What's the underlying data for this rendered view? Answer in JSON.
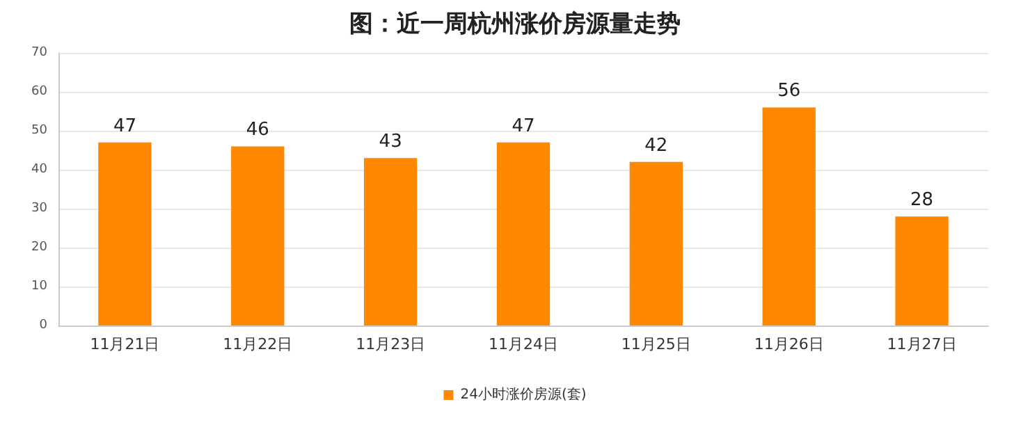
{
  "chart_data": {
    "type": "bar",
    "title": "图：近一周杭州涨价房源量走势",
    "categories": [
      "11月21日",
      "11月22日",
      "11月23日",
      "11月24日",
      "11月25日",
      "11月26日",
      "11月27日"
    ],
    "series": [
      {
        "name": "24小时涨价房源(套)",
        "color": "#ff8800",
        "values": [
          47,
          46,
          43,
          47,
          42,
          56,
          28
        ]
      }
    ],
    "ylim": [
      0,
      70
    ],
    "yticks": [
      0,
      10,
      20,
      30,
      40,
      50,
      60,
      70
    ],
    "grid": "y",
    "legend": "bottom",
    "data_labels": true
  }
}
